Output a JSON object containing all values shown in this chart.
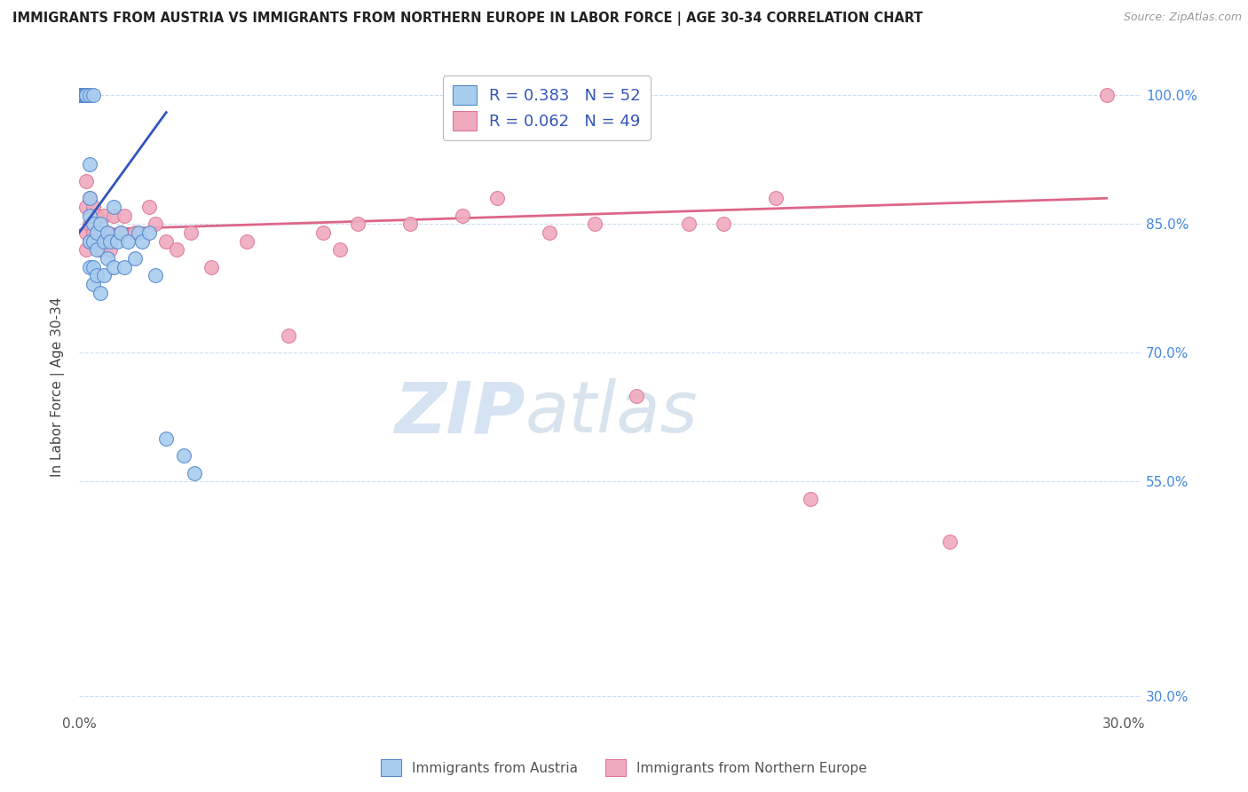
{
  "title": "IMMIGRANTS FROM AUSTRIA VS IMMIGRANTS FROM NORTHERN EUROPE IN LABOR FORCE | AGE 30-34 CORRELATION CHART",
  "source": "Source: ZipAtlas.com",
  "ylabel": "In Labor Force | Age 30-34",
  "xlim": [
    0.0,
    0.305
  ],
  "ylim": [
    0.28,
    1.04
  ],
  "xtick_positions": [
    0.0,
    0.05,
    0.1,
    0.15,
    0.2,
    0.25,
    0.3
  ],
  "xticklabels": [
    "0.0%",
    "",
    "",
    "",
    "",
    "",
    "30.0%"
  ],
  "ytick_positions": [
    0.3,
    0.55,
    0.7,
    0.85,
    1.0
  ],
  "yticklabels": [
    "30.0%",
    "55.0%",
    "70.0%",
    "85.0%",
    "100.0%"
  ],
  "blue_color": "#A8CCEE",
  "pink_color": "#F0AABE",
  "blue_edge_color": "#5588CC",
  "pink_edge_color": "#DD7799",
  "blue_line_color": "#3355BB",
  "pink_line_color": "#DD6688",
  "legend_blue_r": "R = 0.383",
  "legend_blue_n": "N = 52",
  "legend_pink_r": "R = 0.062",
  "legend_pink_n": "N = 49",
  "legend_label_blue": "Immigrants from Austria",
  "legend_label_pink": "Immigrants from Northern Europe",
  "blue_scatter_x": [
    0.0005,
    0.0007,
    0.0008,
    0.001,
    0.001,
    0.001,
    0.001,
    0.001,
    0.001,
    0.0015,
    0.0015,
    0.002,
    0.002,
    0.002,
    0.002,
    0.002,
    0.002,
    0.003,
    0.003,
    0.003,
    0.003,
    0.003,
    0.003,
    0.004,
    0.004,
    0.004,
    0.004,
    0.004,
    0.005,
    0.005,
    0.005,
    0.006,
    0.006,
    0.007,
    0.007,
    0.008,
    0.008,
    0.009,
    0.01,
    0.01,
    0.011,
    0.012,
    0.013,
    0.014,
    0.016,
    0.017,
    0.018,
    0.02,
    0.022,
    0.025,
    0.03,
    0.033
  ],
  "blue_scatter_y": [
    1.0,
    1.0,
    1.0,
    1.0,
    1.0,
    1.0,
    1.0,
    1.0,
    1.0,
    1.0,
    1.0,
    1.0,
    1.0,
    1.0,
    1.0,
    1.0,
    1.0,
    0.92,
    0.88,
    0.86,
    0.83,
    0.8,
    1.0,
    0.85,
    0.83,
    0.8,
    0.78,
    1.0,
    0.84,
    0.82,
    0.79,
    0.85,
    0.77,
    0.83,
    0.79,
    0.84,
    0.81,
    0.83,
    0.87,
    0.8,
    0.83,
    0.84,
    0.8,
    0.83,
    0.81,
    0.84,
    0.83,
    0.84,
    0.79,
    0.6,
    0.58,
    0.56
  ],
  "pink_scatter_x": [
    0.0005,
    0.001,
    0.001,
    0.001,
    0.001,
    0.001,
    0.001,
    0.002,
    0.002,
    0.002,
    0.002,
    0.003,
    0.003,
    0.003,
    0.004,
    0.004,
    0.005,
    0.006,
    0.006,
    0.007,
    0.008,
    0.009,
    0.01,
    0.012,
    0.013,
    0.016,
    0.02,
    0.022,
    0.025,
    0.028,
    0.032,
    0.038,
    0.048,
    0.06,
    0.07,
    0.075,
    0.08,
    0.095,
    0.11,
    0.12,
    0.135,
    0.148,
    0.16,
    0.175,
    0.185,
    0.2,
    0.21,
    0.25,
    0.295
  ],
  "pink_scatter_y": [
    1.0,
    1.0,
    1.0,
    1.0,
    1.0,
    1.0,
    1.0,
    0.9,
    0.87,
    0.84,
    0.82,
    0.88,
    0.85,
    0.83,
    0.87,
    0.84,
    0.86,
    0.84,
    0.82,
    0.86,
    0.84,
    0.82,
    0.86,
    0.84,
    0.86,
    0.84,
    0.87,
    0.85,
    0.83,
    0.82,
    0.84,
    0.8,
    0.83,
    0.72,
    0.84,
    0.82,
    0.85,
    0.85,
    0.86,
    0.88,
    0.84,
    0.85,
    0.65,
    0.85,
    0.85,
    0.88,
    0.53,
    0.48,
    1.0
  ],
  "blue_trend_x": [
    0.0,
    0.025
  ],
  "blue_trend_y": [
    0.84,
    0.98
  ],
  "pink_trend_x": [
    0.0,
    0.295
  ],
  "pink_trend_y": [
    0.843,
    0.88
  ],
  "grid_color": "#CCDDEE",
  "watermark_zip": "ZIP",
  "watermark_atlas": "atlas",
  "watermark_color_zip": "#C8D8EE",
  "watermark_color_atlas": "#C0D0E8"
}
